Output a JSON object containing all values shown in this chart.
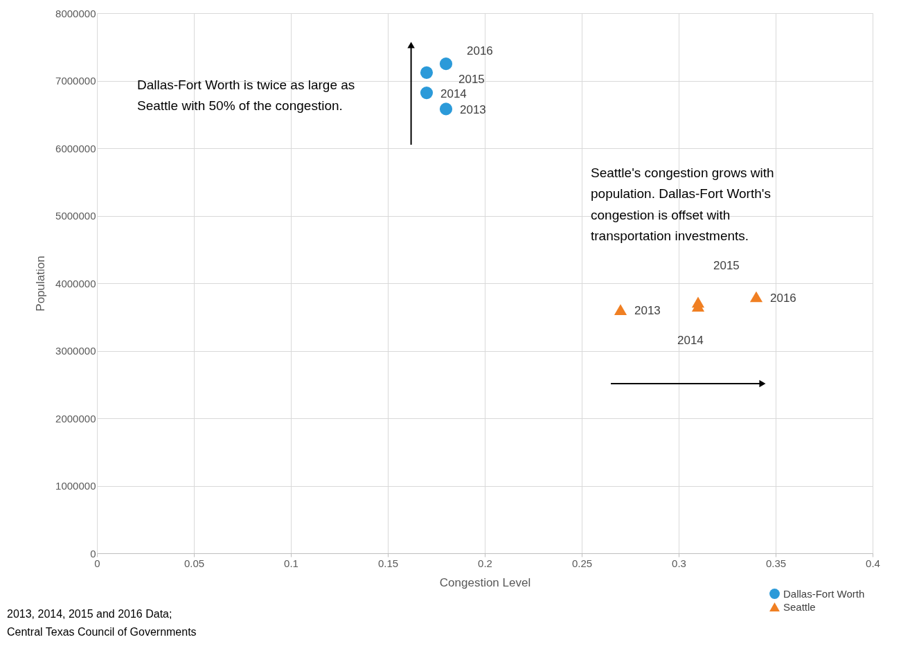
{
  "chart_data": {
    "type": "scatter",
    "xlabel": "Congestion Level",
    "ylabel": "Population",
    "xlim": [
      0,
      0.4
    ],
    "xticks": [
      0,
      0.05,
      0.1,
      0.15,
      0.2,
      0.25,
      0.3,
      0.35,
      0.4
    ],
    "ylim": [
      0,
      8000000
    ],
    "yticks": [
      0,
      1000000,
      2000000,
      3000000,
      4000000,
      5000000,
      6000000,
      7000000,
      8000000
    ],
    "grid": true,
    "legend": "bottom right",
    "series": [
      {
        "name": "Dallas-Fort Worth",
        "color": "#2b9ad9",
        "marker": "circle",
        "x": [
          0.18,
          0.17,
          0.17,
          0.18
        ],
        "values": [
          6580000,
          6820000,
          7120000,
          7250000
        ]
      },
      {
        "name": "Seattle",
        "color": "#f07f22",
        "marker": "triangle",
        "x": [
          0.27,
          0.31,
          0.31,
          0.34
        ],
        "values": [
          3610000,
          3660000,
          3720000,
          3800000
        ]
      }
    ],
    "annotations": [
      {
        "text": "2013",
        "x": 0.18,
        "y": 6580000
      },
      {
        "text": "2014",
        "x": 0.17,
        "y": 6820000
      },
      {
        "text": "2015",
        "x": 0.17,
        "y": 7120000
      },
      {
        "text": "2016",
        "x": 0.18,
        "y": 7250000
      },
      {
        "text": "2013",
        "x": 0.27,
        "y": 3610000
      },
      {
        "text": "2014",
        "x": 0.31,
        "y": 3660000
      },
      {
        "text": "2015",
        "x": 0.31,
        "y": 3720000
      },
      {
        "text": "2016",
        "x": 0.34,
        "y": 3800000
      },
      "Dallas-Fort Worth is twice as large as\nSeattle with 50% of the congestion.",
      "Seattle's congestion grows with\npopulation.  Dallas-Fort Worth's\ncongestion is offset with\ntransportation investments.",
      "2013, 2014, 2015 and 2016 Data;\nCentral Texas Council of Governments"
    ]
  }
}
